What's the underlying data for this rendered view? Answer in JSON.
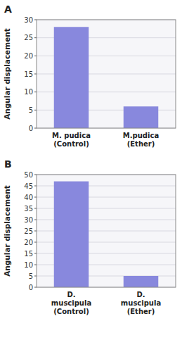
{
  "chart_data": [
    {
      "type": "bar",
      "title": "A",
      "categories": [
        "M. pudica\n(Control)",
        "M.pudica\n(Ether)"
      ],
      "values": [
        28,
        6
      ],
      "color": "#8888dd",
      "y_label": "Angular displacement",
      "ylim": [
        0,
        30
      ],
      "yticks": [
        0,
        5,
        10,
        15,
        20,
        25,
        30
      ],
      "grid": true
    },
    {
      "type": "bar",
      "title": "B",
      "categories": [
        "D.\nmuscipula\n(Control)",
        "D.\nmuscipula\n(Ether)"
      ],
      "values": [
        47,
        5
      ],
      "color": "#8888dd",
      "y_label": "Angular displacement",
      "ylim": [
        0,
        50
      ],
      "yticks": [
        0,
        5,
        10,
        15,
        20,
        25,
        30,
        35,
        40,
        45,
        50
      ],
      "grid": true
    }
  ]
}
